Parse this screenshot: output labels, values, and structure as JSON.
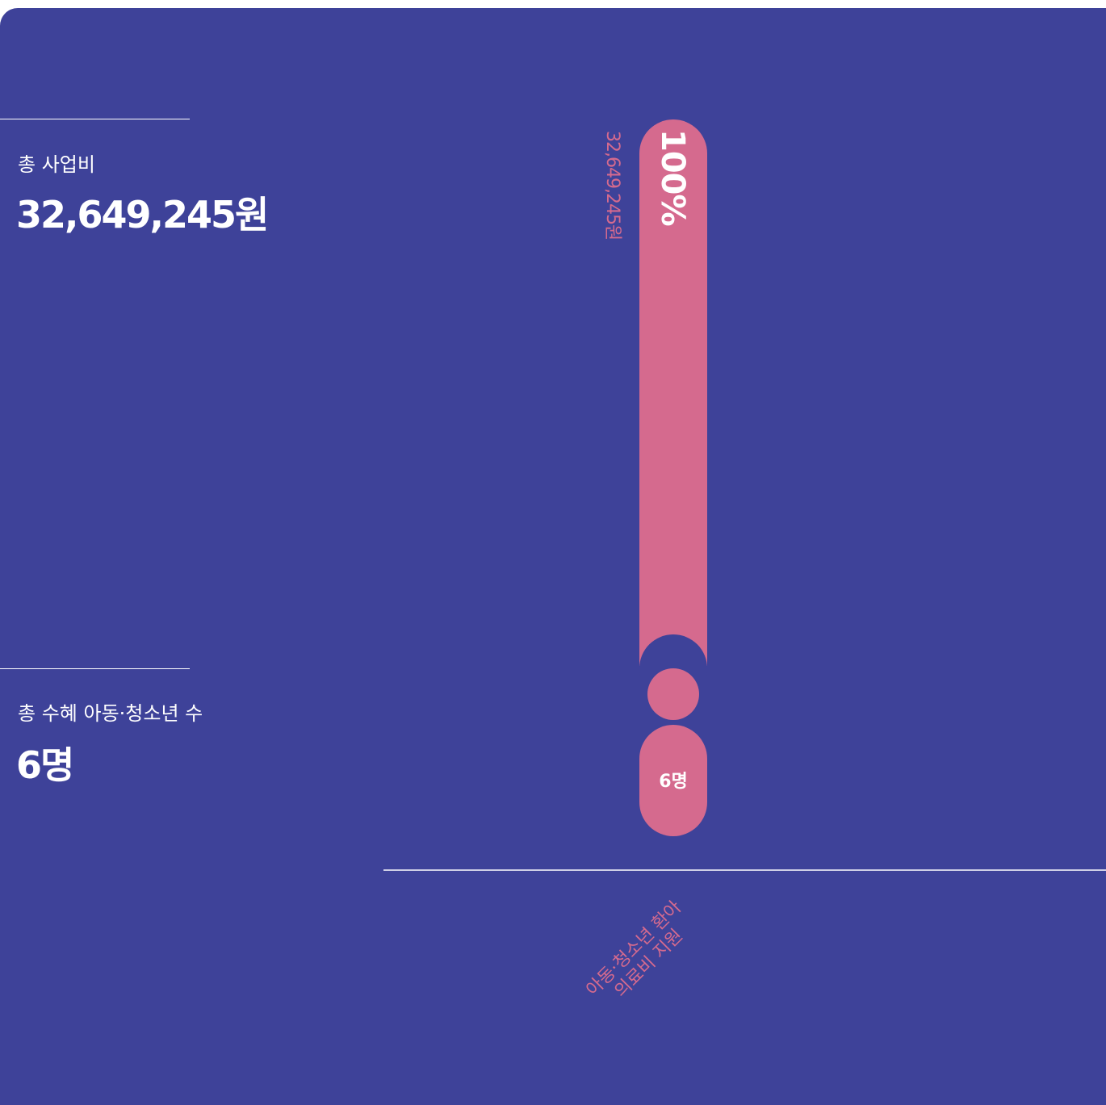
{
  "summary": [
    {
      "label": "총 사업비",
      "value": "32,649,245원"
    },
    {
      "label": "총 수혜 아동·청소년 수",
      "value": "6명"
    }
  ],
  "chart_data": {
    "type": "bar",
    "categories": [
      "아동·청소년 환아\n의료비 지원"
    ],
    "values": [
      100
    ],
    "value_labels": [
      "100%"
    ],
    "amount_labels": [
      "32,649,245원"
    ],
    "count_labels": [
      "6명"
    ],
    "color": "#d56a8e"
  }
}
